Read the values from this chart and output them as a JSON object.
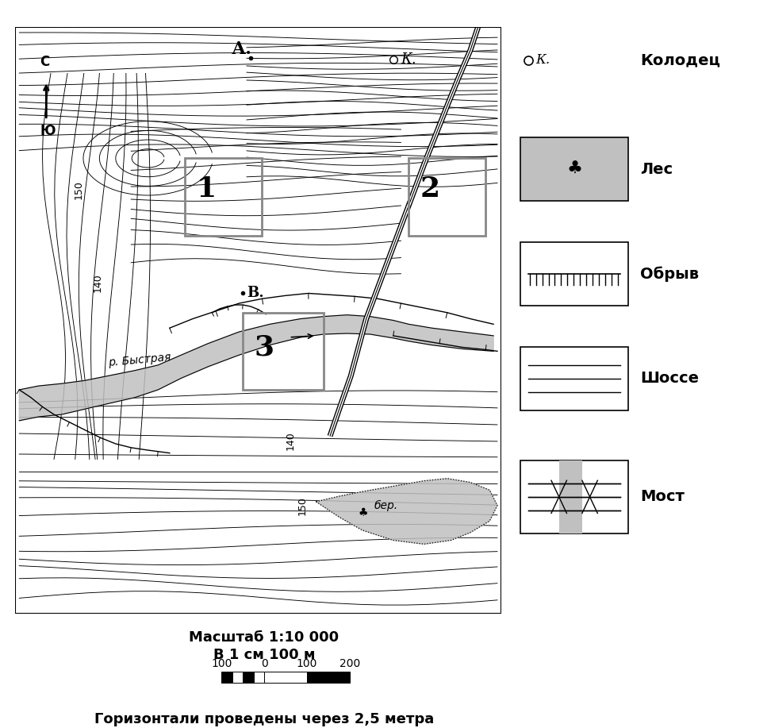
{
  "bg_color": "#ffffff",
  "contour_color": "#000000",
  "gray_fill": "#c0c0c0",
  "box_color": "#808080",
  "title_scale": "Масштаб 1:10 000",
  "title_cm": "В 1 см 100 м",
  "bottom_text": "Горизонтали проведены через 2,5 метра",
  "north_labels": [
    "С",
    "Ю"
  ],
  "point_A_label": "А.",
  "point_B_label": "В.",
  "point_K_label": "К.",
  "river_label": "р. Быстрая",
  "forest_label": "бер.",
  "legend_kolodets": "Колодец",
  "legend_les": "Лес",
  "legend_obryv": "Обрыв",
  "legend_shosse": "Шоссе",
  "legend_most": "Мост"
}
